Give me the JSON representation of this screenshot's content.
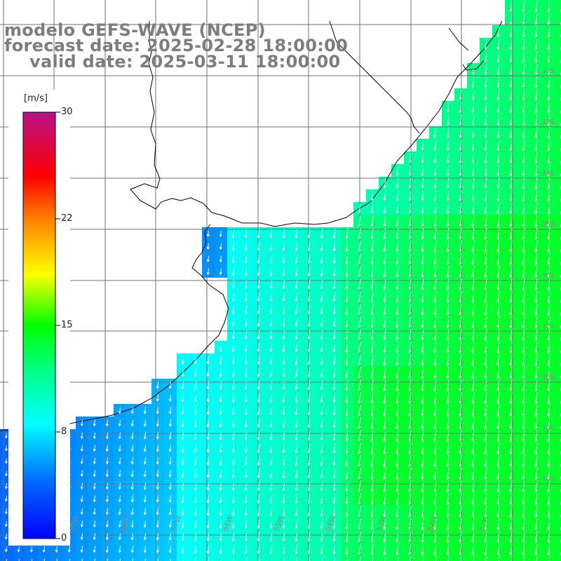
{
  "title": {
    "model": "modelo GEFS-WAVE (NCEP)",
    "forecast": "forecast date: 2025-02-28 18:00:00",
    "valid": "valid date: 2025-03-11 18:00:00"
  },
  "colorbar": {
    "unit": "[m/s]",
    "min": 0,
    "max": 30,
    "ticks": [
      "0",
      "8",
      "15",
      "22",
      "30"
    ],
    "colors": [
      "#0000ff",
      "#00bfff",
      "#00ffff",
      "#00ff00",
      "#ffff00",
      "#ff8000",
      "#ff0000",
      "#cc0066",
      "#aa3388"
    ]
  },
  "map": {
    "land_color": "#ffffff",
    "coast_color": "#000000",
    "grid_color": "#707070",
    "arrow_color": "#ffffff",
    "lat_labels": [
      "32S",
      "33S",
      "34S",
      "35S",
      "36S",
      "37S",
      "38S",
      "39S",
      "40S"
    ],
    "lon_labels": [
      "60W",
      "59W",
      "58W",
      "57W",
      "56W",
      "55W",
      "54W",
      "53W",
      "52W",
      "51W"
    ],
    "wind_direction": "north-to-south (arrows pointing down / southward)"
  }
}
